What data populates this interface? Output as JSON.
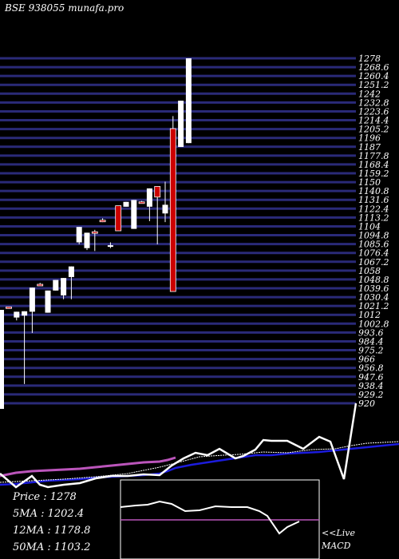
{
  "chart_data": {
    "type": "candlestick",
    "title": "BSE 938055 munafa.pro",
    "price_axis": {
      "labels": [
        "1278",
        "1268.6",
        "1260.4",
        "1251.2",
        "1242",
        "1232.8",
        "1223.6",
        "1214.4",
        "1205.2",
        "1196",
        "1187",
        "1177.8",
        "1168.4",
        "1159.2",
        "1150",
        "1140.8",
        "1131.6",
        "1122.4",
        "1113.2",
        "1104",
        "1094.8",
        "1085.6",
        "1076.4",
        "1067.2",
        "1058",
        "1048.8",
        "1039.6",
        "1030.4",
        "1021.2",
        "1012",
        "1002.8",
        "993.6",
        "984.4",
        "975.2",
        "966",
        "956.8",
        "947.6",
        "938.4",
        "929.2",
        "920"
      ],
      "ylim": [
        920,
        1278
      ]
    },
    "candles": [
      {
        "high": 1020.0,
        "low": 1020.0,
        "open": 1020.0,
        "close": 1020.0,
        "color": "red"
      },
      {
        "high": 1015.0,
        "low": 1006.0,
        "open": 1015.0,
        "close": 1009.0,
        "color": "white"
      },
      {
        "high": 1015.5,
        "low": 940.0,
        "open": 1015.5,
        "close": 1011.0,
        "color": "white"
      },
      {
        "high": 1040.0,
        "low": 993.0,
        "open": 1015.0,
        "close": 1040.0,
        "color": "white"
      },
      {
        "high": 1045.0,
        "low": 1042.0,
        "open": 1043.5,
        "close": 1043.5,
        "color": "red"
      },
      {
        "high": 1037.0,
        "low": 1014.0,
        "open": 1014.0,
        "close": 1037.0,
        "color": "white"
      },
      {
        "high": 1048.0,
        "low": 1037.0,
        "open": 1037.0,
        "close": 1048.0,
        "color": "white"
      },
      {
        "high": 1050.0,
        "low": 1028.0,
        "open": 1050.0,
        "close": 1032.0,
        "color": "white"
      },
      {
        "high": 1062.0,
        "low": 1028.0,
        "open": 1051.0,
        "close": 1062.0,
        "color": "white"
      },
      {
        "high": 1103.0,
        "low": 1085.0,
        "open": 1087.0,
        "close": 1103.0,
        "color": "white"
      },
      {
        "high": 1097.0,
        "low": 1079.0,
        "open": 1097.0,
        "close": 1081.0,
        "color": "white"
      },
      {
        "high": 1100.0,
        "low": 1078.0,
        "open": 1098.0,
        "close": 1098.0,
        "color": "red"
      },
      {
        "high": 1112.0,
        "low": 1108.0,
        "open": 1110.0,
        "close": 1110.0,
        "color": "red"
      },
      {
        "high": 1087.0,
        "low": 1081.0,
        "open": 1084.0,
        "close": 1084.0,
        "color": "white"
      },
      {
        "high": 1125.0,
        "low": 1099.0,
        "open": 1125.0,
        "close": 1099.0,
        "color": "red"
      },
      {
        "high": 1129.0,
        "low": 1124.0,
        "open": 1124.0,
        "close": 1129.0,
        "color": "white"
      },
      {
        "high": 1131.0,
        "low": 1101.0,
        "open": 1101.0,
        "close": 1131.0,
        "color": "white"
      },
      {
        "high": 1130.0,
        "low": 1129.0,
        "open": 1129.0,
        "close": 1129.0,
        "color": "red"
      },
      {
        "high": 1143.0,
        "low": 1109.0,
        "open": 1124.0,
        "close": 1143.0,
        "color": "white"
      },
      {
        "high": 1145.0,
        "low": 1085.0,
        "open": 1145.0,
        "close": 1134.0,
        "color": "red"
      },
      {
        "high": 1150.0,
        "low": 1108.0,
        "open": 1117.0,
        "close": 1126.0,
        "color": "white"
      },
      {
        "high": 1218.0,
        "low": 1036.0,
        "open": 1205.0,
        "close": 1036.0,
        "color": "red"
      },
      {
        "high": 1234.0,
        "low": 1186.0,
        "open": 1186.0,
        "close": 1234.0,
        "color": "white"
      },
      {
        "high": 1278.0,
        "low": 1190.0,
        "open": 1190.0,
        "close": 1278.0,
        "color": "white"
      }
    ],
    "stats": {
      "price": "Price   :  1278",
      "ma5": "5MA : 1202.4",
      "ma12": "12MA : 1178.8",
      "ma50": "50MA : 1103.2"
    },
    "indicator_label_1": "<<Live",
    "indicator_label_2": "MACD",
    "colors": {
      "background": "#000000",
      "gridline": "#2a2a78",
      "up_candle": "#ffffff",
      "down_candle": "#cc0000",
      "price_line": "#ffffff",
      "ma_fast": "#bb55bb",
      "ma_slow": "#1c1cdd",
      "macd_signal": "#bb55bb"
    }
  }
}
